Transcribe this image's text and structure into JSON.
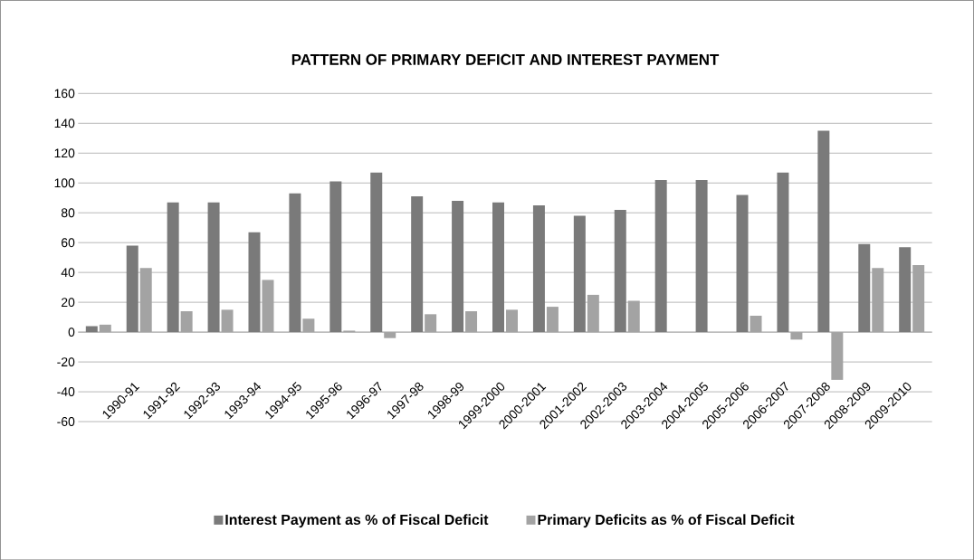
{
  "chart_data": {
    "type": "bar",
    "title": "PATTERN OF PRIMARY DEFICIT AND INTEREST PAYMENT",
    "categories": [
      null,
      "1990-91",
      "1991-92",
      "1992-93",
      "1993-94",
      "1994-95",
      "1995-96",
      "1996-97",
      "1997-98",
      "1998-99",
      "1999-2000",
      "2000-2001",
      "2001-2002",
      "2002-2003",
      "2003-2004",
      "2004-2005",
      "2005-2006",
      "2006-2007",
      "2007-2008",
      "2008-2009",
      "2009-2010"
    ],
    "series": [
      {
        "name": "Interest Payment as % of Fiscal Deficit",
        "color": "#7a7a7a",
        "values": [
          4,
          58,
          87,
          87,
          67,
          93,
          101,
          107,
          91,
          88,
          87,
          85,
          78,
          82,
          102,
          102,
          92,
          107,
          135,
          59,
          57
        ]
      },
      {
        "name": "Primary Deficits as % of Fiscal Deficit",
        "color": "#a3a3a3",
        "values": [
          5,
          43,
          14,
          15,
          35,
          9,
          1,
          -4,
          12,
          14,
          15,
          17,
          25,
          21,
          null,
          null,
          11,
          -5,
          -32,
          43,
          45
        ]
      }
    ],
    "ylim": [
      -60,
      160
    ],
    "yticks": [
      -60,
      -40,
      -20,
      0,
      20,
      40,
      60,
      80,
      100,
      120,
      140,
      160
    ],
    "grid": "y",
    "legend": "bottom"
  }
}
